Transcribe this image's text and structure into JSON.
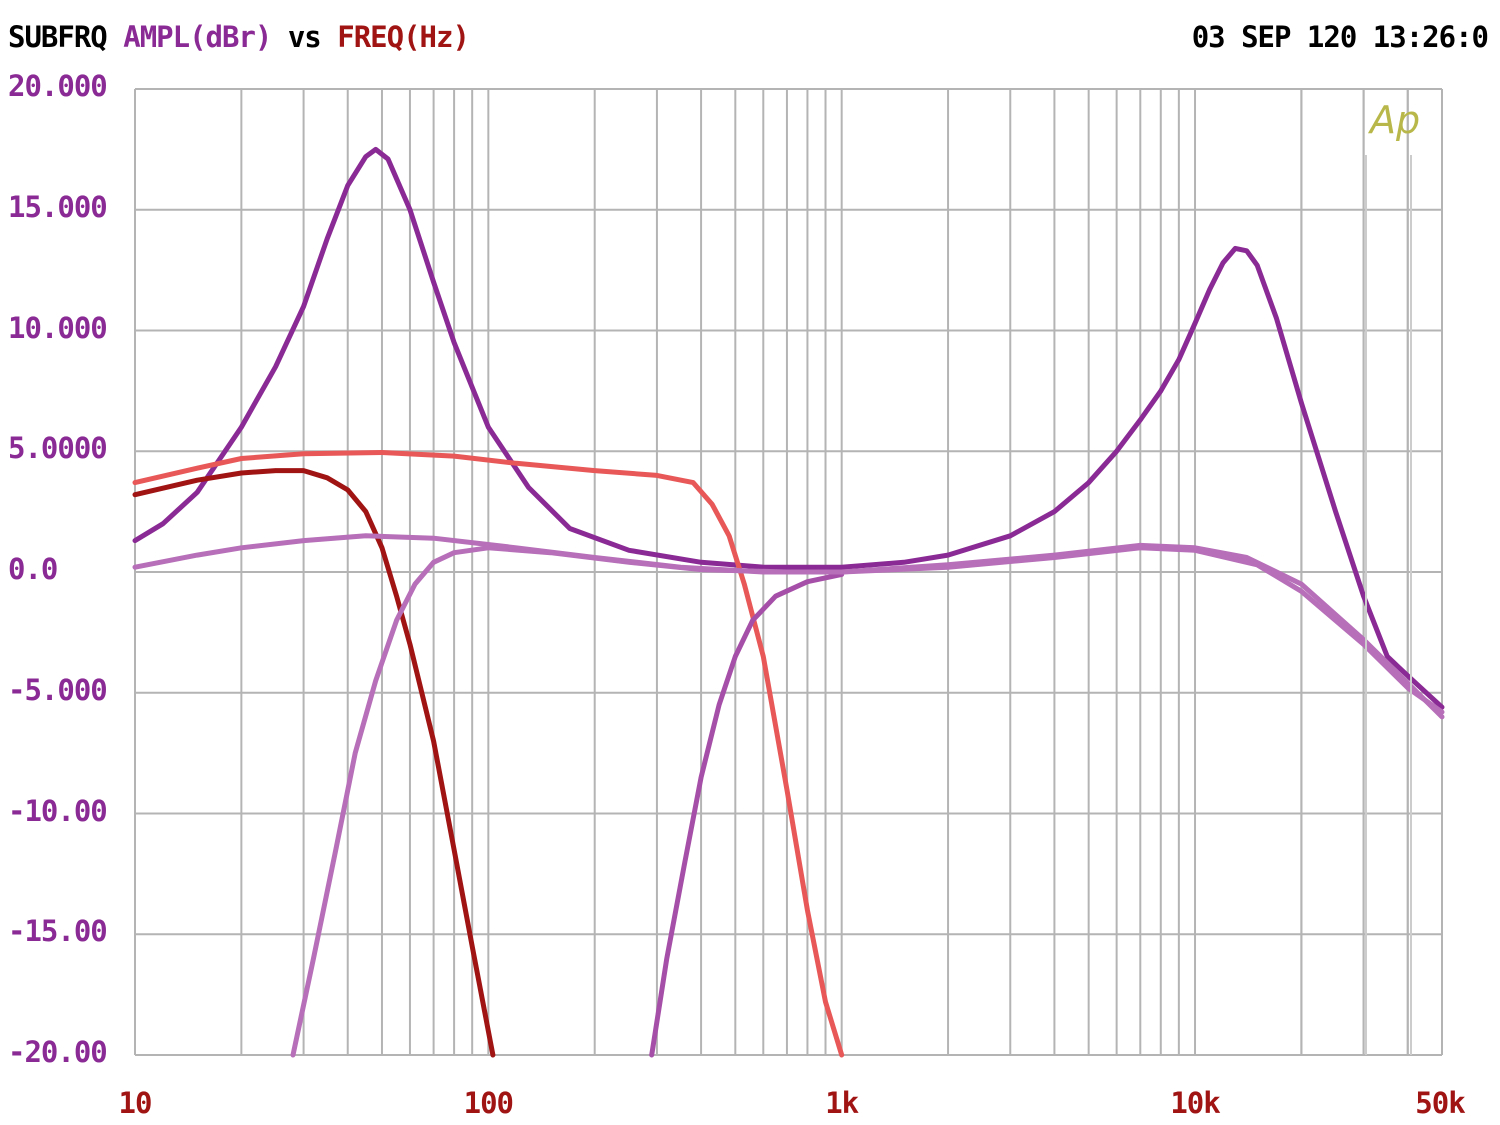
{
  "header": {
    "left_part1": "SUBFRQ",
    "left_part2": "AMPL(dBr)",
    "left_part3": "vs",
    "left_part4": "FREQ(Hz)",
    "right": "03 SEP 120 13:26:0"
  },
  "logo_text": "Ap",
  "colors": {
    "grid": "#b4b4b4",
    "axis_label_y": "#8a2a94",
    "axis_label_x": "#a01414"
  },
  "chart_data": {
    "type": "line",
    "title": "SUBFRQ AMPL(dBr) vs FREQ(Hz)",
    "xlabel": "FREQ(Hz)",
    "ylabel": "AMPL(dBr)",
    "x_scale": "log",
    "xlim": [
      10,
      50000
    ],
    "ylim": [
      -20,
      20
    ],
    "grid": true,
    "y_ticks": [
      {
        "value": 20,
        "label": "20.000"
      },
      {
        "value": 15,
        "label": "15.000"
      },
      {
        "value": 10,
        "label": "10.000"
      },
      {
        "value": 5,
        "label": "5.0000"
      },
      {
        "value": 0,
        "label": "0.0"
      },
      {
        "value": -5,
        "label": "-5.000"
      },
      {
        "value": -10,
        "label": "-10.00"
      },
      {
        "value": -15,
        "label": "-15.00"
      },
      {
        "value": -20,
        "label": "-20.00"
      }
    ],
    "x_ticks": [
      {
        "value": 10,
        "label": "10"
      },
      {
        "value": 100,
        "label": "100"
      },
      {
        "value": 1000,
        "label": "1k"
      },
      {
        "value": 10000,
        "label": "10k"
      },
      {
        "value": 50000,
        "label": "50k"
      }
    ],
    "series": [
      {
        "color": "#8a2a94",
        "width": 5,
        "points": [
          [
            10,
            1.3
          ],
          [
            12,
            2.0
          ],
          [
            15,
            3.3
          ],
          [
            20,
            6.0
          ],
          [
            25,
            8.5
          ],
          [
            30,
            11.0
          ],
          [
            35,
            13.8
          ],
          [
            40,
            16.0
          ],
          [
            45,
            17.2
          ],
          [
            48,
            17.5
          ],
          [
            52,
            17.1
          ],
          [
            60,
            15.0
          ],
          [
            70,
            12.0
          ],
          [
            80,
            9.5
          ],
          [
            100,
            6.0
          ],
          [
            130,
            3.5
          ],
          [
            170,
            1.8
          ],
          [
            250,
            0.9
          ],
          [
            400,
            0.4
          ],
          [
            600,
            0.2
          ],
          [
            1000,
            0.2
          ],
          [
            1500,
            0.4
          ],
          [
            2000,
            0.7
          ],
          [
            3000,
            1.5
          ],
          [
            4000,
            2.5
          ],
          [
            5000,
            3.7
          ],
          [
            6000,
            5.0
          ],
          [
            7000,
            6.3
          ],
          [
            8000,
            7.5
          ],
          [
            9000,
            8.8
          ],
          [
            10000,
            10.3
          ],
          [
            11000,
            11.7
          ],
          [
            12000,
            12.8
          ],
          [
            13000,
            13.4
          ],
          [
            14000,
            13.3
          ],
          [
            15000,
            12.7
          ],
          [
            17000,
            10.5
          ],
          [
            20000,
            7.0
          ],
          [
            25000,
            2.5
          ],
          [
            30000,
            -1.0
          ],
          [
            35000,
            -3.5
          ],
          [
            40000,
            -4.3
          ],
          [
            50000,
            -5.6
          ]
        ]
      },
      {
        "color": "#a01414",
        "width": 5,
        "points": [
          [
            10,
            3.2
          ],
          [
            15,
            3.8
          ],
          [
            20,
            4.1
          ],
          [
            25,
            4.2
          ],
          [
            30,
            4.2
          ],
          [
            35,
            3.9
          ],
          [
            40,
            3.4
          ],
          [
            45,
            2.5
          ],
          [
            50,
            1.0
          ],
          [
            55,
            -1.0
          ],
          [
            60,
            -3.0
          ],
          [
            70,
            -7.0
          ],
          [
            80,
            -11.5
          ],
          [
            90,
            -15.5
          ],
          [
            100,
            -19.0
          ],
          [
            103,
            -20.0
          ]
        ]
      },
      {
        "color": "#e85858",
        "width": 5,
        "points": [
          [
            10,
            3.7
          ],
          [
            15,
            4.3
          ],
          [
            20,
            4.7
          ],
          [
            30,
            4.9
          ],
          [
            50,
            4.95
          ],
          [
            80,
            4.8
          ],
          [
            120,
            4.5
          ],
          [
            200,
            4.2
          ],
          [
            300,
            4.0
          ],
          [
            380,
            3.7
          ],
          [
            430,
            2.8
          ],
          [
            480,
            1.5
          ],
          [
            530,
            -0.5
          ],
          [
            600,
            -3.5
          ],
          [
            700,
            -9.0
          ],
          [
            800,
            -14.0
          ],
          [
            900,
            -17.8
          ],
          [
            1000,
            -20.0
          ]
        ]
      },
      {
        "color": "#a64fa8",
        "width": 5,
        "points": [
          [
            290,
            -20.0
          ],
          [
            320,
            -16.0
          ],
          [
            360,
            -12.0
          ],
          [
            400,
            -8.5
          ],
          [
            450,
            -5.5
          ],
          [
            500,
            -3.5
          ],
          [
            560,
            -2.0
          ],
          [
            650,
            -1.0
          ],
          [
            800,
            -0.4
          ],
          [
            1000,
            -0.1
          ]
        ]
      },
      {
        "color": "#b66fb8",
        "width": 5,
        "points": [
          [
            28,
            -20.0
          ],
          [
            32,
            -16.0
          ],
          [
            37,
            -11.5
          ],
          [
            42,
            -7.5
          ],
          [
            48,
            -4.5
          ],
          [
            55,
            -2.0
          ],
          [
            62,
            -0.5
          ],
          [
            70,
            0.4
          ],
          [
            80,
            0.8
          ],
          [
            100,
            1.0
          ],
          [
            150,
            0.8
          ],
          [
            250,
            0.4
          ],
          [
            400,
            0.1
          ],
          [
            700,
            0.0
          ],
          [
            1000,
            0.0
          ],
          [
            2000,
            0.3
          ],
          [
            4000,
            0.7
          ],
          [
            7000,
            1.1
          ],
          [
            10000,
            1.0
          ],
          [
            14000,
            0.6
          ],
          [
            20000,
            -0.5
          ],
          [
            30000,
            -2.8
          ],
          [
            40000,
            -4.6
          ],
          [
            50000,
            -6.0
          ]
        ]
      },
      {
        "color": "#b66fb8",
        "width": 5,
        "points": [
          [
            10,
            0.2
          ],
          [
            15,
            0.7
          ],
          [
            20,
            1.0
          ],
          [
            30,
            1.3
          ],
          [
            45,
            1.5
          ],
          [
            70,
            1.4
          ],
          [
            120,
            1.0
          ],
          [
            200,
            0.6
          ],
          [
            350,
            0.2
          ],
          [
            600,
            0.0
          ],
          [
            1000,
            0.0
          ],
          [
            2000,
            0.2
          ],
          [
            4000,
            0.6
          ],
          [
            7000,
            1.0
          ],
          [
            10000,
            0.9
          ],
          [
            15000,
            0.3
          ],
          [
            20000,
            -0.8
          ],
          [
            30000,
            -3.0
          ],
          [
            40000,
            -4.8
          ],
          [
            50000,
            -5.8
          ]
        ]
      }
    ]
  }
}
